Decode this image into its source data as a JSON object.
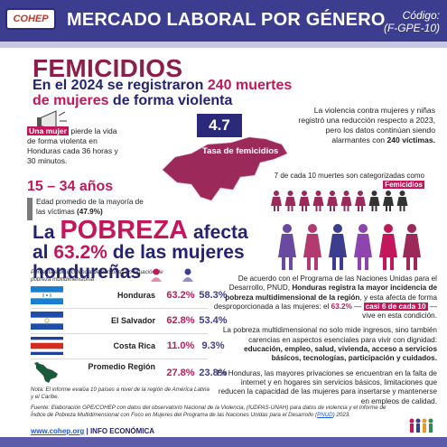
{
  "header": {
    "logo_text": "COHEP",
    "title": "MERCADO LABORAL POR GÉNERO",
    "code_line1": "Código:",
    "code_line2": "(F-GPE-10)",
    "bar_color": "#3d3d8f"
  },
  "femicidios": {
    "title": "FEMICIDIOS",
    "subtitle_a": "En el 2024 se registraron ",
    "subtitle_hl": "240 muertes",
    "subtitle_b": " de mujeres",
    "subtitle_c": " de forma violenta",
    "rate_value": "4.7",
    "rate_label": "Tasa de femicidios",
    "violence_note_a": "La violencia contra mujeres y niñas registró una reducción respecto a 2023, pero los datos continúan siendo alarmantes con ",
    "violence_note_b": "240 víctimas.",
    "mujer_tag": "Una mujer",
    "mujer_text": " pierde la vida de forma violenta en Honduras cada 36 horas y 30 minutos.",
    "age_range": "15 – 34 años",
    "age_text_a": "Edad promedio de la mayoría de las víctimas ",
    "age_text_b": "(47.9%)",
    "seven_text": "7 de cada 10 muertes son categorizadas como",
    "seven_tag": "Femicidios",
    "femicide_share": 0.7
  },
  "pobreza": {
    "title_a": "La ",
    "title_big": "POBREZA",
    "title_b": " afecta",
    "title_c": "al ",
    "title_pct": "63.2%",
    "title_d": " de las mujeres",
    "title_e": "hondureñas",
    "table_note": "Porcentaje de incidencia de personas en situación de pobreza multidimensional",
    "rows": [
      {
        "country": "Honduras",
        "female": "63.2%",
        "male": "58.3%"
      },
      {
        "country": "El Salvador",
        "female": "62.8%",
        "male": "53.4%"
      },
      {
        "country": "Costa Rica",
        "female": "11.0%",
        "male": "9.3%"
      },
      {
        "country": "Promedio Región",
        "female": "27.8%",
        "male": "23.8%"
      }
    ],
    "foot_note": "Nota: El informe evalúa 10 países a nivel de la región de América Latina y el Caribe.",
    "p1_a": "De acuerdo con el Programa de las Naciones Unidas para el Desarrollo, PNUD, ",
    "p1_b": "Honduras registra la mayor incidencia de pobreza multidimensional de la región",
    "p1_c": ", y esta afecta de forma desproporcionada a las mujeres: el ",
    "p1_d": "63.2%",
    "p1_e": " — ",
    "p1_tag": "casi 6 de cada 10",
    "p1_f": " — vive en esta condición.",
    "p2_a": "La pobreza multidimensional no solo mide ingresos, sino también carencias en aspectos esenciales para vivir con dignidad: ",
    "p2_b": "educación, empleo, salud, vivienda, acceso a servicios básicos, tecnologías, participación y cuidados.",
    "p3": "En Honduras, las mayores privaciones se encuentran en la falta de internet y en hogares sin servicios básicos, limitaciones que reducen la capacidad de las mujeres para insertarse y mantenerse en empleos de calidad."
  },
  "footer": {
    "source_a": "Fuente: Elaboración GPE/COHEP con datos del observatorio Nacional de la Violencia, (IUDPAS-UNAH) para datos de violencia y el Informe de Índice de Pobreza Multidimensional con Foco en Mujeres del Programa de las Naciones Unidas para el Desarrollo (",
    "source_link": "PNUD",
    "source_b": ") 2023.",
    "web_link": "www.cohep.org",
    "web_rest": " | INFO ECONÓMICA"
  }
}
